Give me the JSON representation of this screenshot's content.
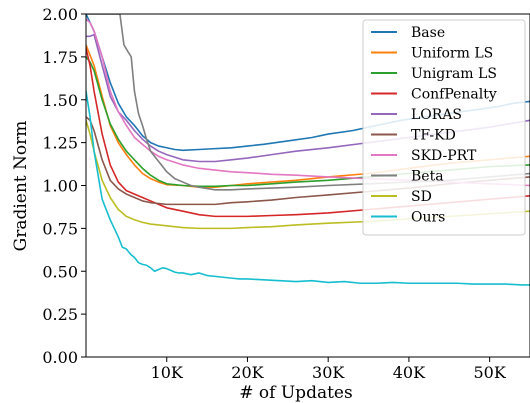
{
  "chart_data": {
    "type": "line",
    "xlabel": "# of Updates",
    "ylabel": "Gradient Norm",
    "xlim": [
      0,
      55000
    ],
    "ylim": [
      0.0,
      2.0
    ],
    "x_ticks": [
      10000,
      20000,
      30000,
      40000,
      50000
    ],
    "x_tick_labels": [
      "10K",
      "20K",
      "30K",
      "40K",
      "50K"
    ],
    "y_ticks": [
      0.0,
      0.25,
      0.5,
      0.75,
      1.0,
      1.25,
      1.5,
      1.75,
      2.0
    ],
    "y_tick_labels": [
      "0.00",
      "0.25",
      "0.50",
      "0.75",
      "1.00",
      "1.25",
      "1.50",
      "1.75",
      "2.00"
    ],
    "grid": false,
    "legend_position": "top-right",
    "series": [
      {
        "name": "Base",
        "color": "#1f77b4",
        "x": [
          0,
          500,
          1000,
          2000,
          3000,
          4000,
          5000,
          6000,
          7000,
          8000,
          9000,
          10000,
          11000,
          12000,
          14000,
          16000,
          18000,
          20000,
          22000,
          25000,
          28000,
          30000,
          33000,
          36000,
          39000,
          42000,
          45000,
          48000,
          51000,
          53000,
          55000
        ],
        "y": [
          2.0,
          1.95,
          1.9,
          1.75,
          1.6,
          1.48,
          1.4,
          1.35,
          1.29,
          1.25,
          1.23,
          1.22,
          1.21,
          1.205,
          1.21,
          1.215,
          1.22,
          1.23,
          1.24,
          1.26,
          1.28,
          1.3,
          1.32,
          1.35,
          1.38,
          1.4,
          1.42,
          1.44,
          1.46,
          1.48,
          1.49
        ]
      },
      {
        "name": "Uniform LS",
        "color": "#ff7f0e",
        "x": [
          0,
          500,
          1000,
          2000,
          3000,
          4000,
          5000,
          6000,
          7000,
          8000,
          9000,
          10000,
          12000,
          14000,
          16000,
          18000,
          20000,
          23000,
          26000,
          30000,
          35000,
          40000,
          45000,
          50000,
          55000
        ],
        "y": [
          1.82,
          1.76,
          1.7,
          1.52,
          1.35,
          1.25,
          1.18,
          1.12,
          1.07,
          1.04,
          1.02,
          1.005,
          1.0,
          0.99,
          0.99,
          1.0,
          1.01,
          1.02,
          1.03,
          1.05,
          1.07,
          1.1,
          1.13,
          1.15,
          1.17
        ]
      },
      {
        "name": "Unigram LS",
        "color": "#2ca02c",
        "x": [
          0,
          500,
          1000,
          2000,
          3000,
          4000,
          5000,
          6000,
          7000,
          8000,
          9000,
          10000,
          12000,
          14000,
          16000,
          18000,
          20000,
          23000,
          26000,
          30000,
          35000,
          40000,
          45000,
          50000,
          55000
        ],
        "y": [
          1.75,
          1.72,
          1.67,
          1.5,
          1.36,
          1.27,
          1.2,
          1.15,
          1.1,
          1.06,
          1.03,
          1.01,
          1.0,
          0.995,
          0.995,
          1.0,
          1.0,
          1.01,
          1.02,
          1.03,
          1.05,
          1.07,
          1.09,
          1.11,
          1.12
        ]
      },
      {
        "name": "ConfPenalty",
        "color": "#d62728",
        "x": [
          0,
          500,
          1000,
          2000,
          3000,
          4000,
          5000,
          6000,
          7000,
          8000,
          9000,
          10000,
          12000,
          14000,
          16000,
          18000,
          20000,
          23000,
          26000,
          30000,
          35000,
          40000,
          45000,
          50000,
          55000
        ],
        "y": [
          1.8,
          1.7,
          1.55,
          1.3,
          1.12,
          1.02,
          0.97,
          0.95,
          0.93,
          0.91,
          0.89,
          0.87,
          0.85,
          0.83,
          0.82,
          0.82,
          0.82,
          0.825,
          0.83,
          0.84,
          0.86,
          0.88,
          0.9,
          0.92,
          0.94
        ]
      },
      {
        "name": "LORAS",
        "color": "#9467bd",
        "x": [
          0,
          500,
          1000,
          2000,
          3000,
          4000,
          5000,
          6000,
          7000,
          8000,
          9000,
          10000,
          12000,
          14000,
          16000,
          18000,
          20000,
          23000,
          26000,
          30000,
          35000,
          40000,
          45000,
          50000,
          55000
        ],
        "y": [
          1.87,
          1.87,
          1.88,
          1.7,
          1.52,
          1.43,
          1.38,
          1.32,
          1.27,
          1.23,
          1.2,
          1.18,
          1.15,
          1.14,
          1.14,
          1.15,
          1.16,
          1.18,
          1.2,
          1.22,
          1.25,
          1.28,
          1.31,
          1.34,
          1.38
        ]
      },
      {
        "name": "TF-KD",
        "color": "#8c564b",
        "x": [
          0,
          500,
          1000,
          2000,
          3000,
          4000,
          5000,
          6000,
          7000,
          8000,
          9000,
          10000,
          12000,
          14000,
          16000,
          18000,
          20000,
          23000,
          26000,
          30000,
          35000,
          40000,
          45000,
          50000,
          55000
        ],
        "y": [
          1.4,
          1.38,
          1.32,
          1.15,
          1.03,
          0.98,
          0.95,
          0.93,
          0.91,
          0.9,
          0.895,
          0.89,
          0.89,
          0.89,
          0.89,
          0.9,
          0.905,
          0.915,
          0.93,
          0.945,
          0.965,
          0.985,
          1.01,
          1.03,
          1.05
        ]
      },
      {
        "name": "SKD-PRT",
        "color": "#e377c2",
        "x": [
          0,
          500,
          1000,
          2000,
          3000,
          4000,
          5000,
          6000,
          7000,
          8000,
          9000,
          10000,
          12000,
          14000,
          16000,
          18000,
          20000,
          23000,
          26000,
          30000,
          35000,
          40000,
          45000,
          50000,
          55000
        ],
        "y": [
          1.97,
          1.95,
          1.9,
          1.75,
          1.55,
          1.43,
          1.35,
          1.28,
          1.24,
          1.2,
          1.17,
          1.15,
          1.12,
          1.1,
          1.09,
          1.08,
          1.075,
          1.065,
          1.06,
          1.05,
          1.04,
          1.03,
          1.02,
          1.01,
          1.0
        ]
      },
      {
        "name": "Beta",
        "color": "#7f7f7f",
        "x": [
          0,
          300,
          800,
          1200,
          1800,
          2500,
          3500,
          4200,
          4700,
          5200,
          5600,
          6000,
          6500,
          7000,
          7500,
          8000,
          9000,
          10000,
          11000,
          12000,
          13000,
          14000,
          16000,
          18000,
          20000,
          23000,
          26000,
          30000,
          35000,
          40000,
          45000,
          50000,
          55000
        ],
        "y": [
          2.0,
          2.0,
          2.0,
          2.0,
          2.0,
          2.0,
          2.0,
          2.0,
          1.82,
          1.78,
          1.75,
          1.55,
          1.42,
          1.35,
          1.27,
          1.2,
          1.14,
          1.08,
          1.04,
          1.02,
          1.0,
          0.99,
          0.975,
          0.975,
          0.98,
          0.985,
          0.99,
          1.0,
          1.01,
          1.02,
          1.03,
          1.05,
          1.07
        ]
      },
      {
        "name": "SD",
        "color": "#bcbd22",
        "x": [
          0,
          500,
          1000,
          2000,
          3000,
          4000,
          5000,
          6000,
          7000,
          8000,
          9000,
          10000,
          12000,
          14000,
          16000,
          18000,
          20000,
          23000,
          26000,
          30000,
          35000,
          40000,
          45000,
          50000,
          55000
        ],
        "y": [
          1.38,
          1.3,
          1.2,
          1.03,
          0.93,
          0.86,
          0.82,
          0.8,
          0.785,
          0.775,
          0.77,
          0.765,
          0.755,
          0.75,
          0.75,
          0.75,
          0.755,
          0.76,
          0.77,
          0.78,
          0.79,
          0.805,
          0.82,
          0.835,
          0.85
        ]
      },
      {
        "name": "Ours",
        "color": "#17becf",
        "x": [
          0,
          500,
          1000,
          2000,
          3000,
          4000,
          4500,
          5000,
          5500,
          6000,
          6500,
          7000,
          7500,
          8000,
          8500,
          9000,
          9500,
          10000,
          10500,
          11000,
          11500,
          12000,
          13000,
          14000,
          15000,
          16000,
          17000,
          18000,
          19000,
          20000,
          22000,
          24000,
          26000,
          28000,
          30000,
          32000,
          34000,
          36000,
          38000,
          40000,
          42000,
          44000,
          46000,
          48000,
          50000,
          52000,
          54000,
          55000
        ],
        "y": [
          1.55,
          1.4,
          1.2,
          0.92,
          0.8,
          0.7,
          0.64,
          0.63,
          0.6,
          0.58,
          0.55,
          0.54,
          0.535,
          0.52,
          0.5,
          0.51,
          0.52,
          0.515,
          0.505,
          0.495,
          0.49,
          0.49,
          0.48,
          0.49,
          0.475,
          0.47,
          0.465,
          0.46,
          0.455,
          0.455,
          0.45,
          0.445,
          0.44,
          0.445,
          0.435,
          0.44,
          0.43,
          0.43,
          0.435,
          0.43,
          0.43,
          0.43,
          0.43,
          0.425,
          0.425,
          0.425,
          0.42,
          0.42
        ]
      }
    ]
  }
}
